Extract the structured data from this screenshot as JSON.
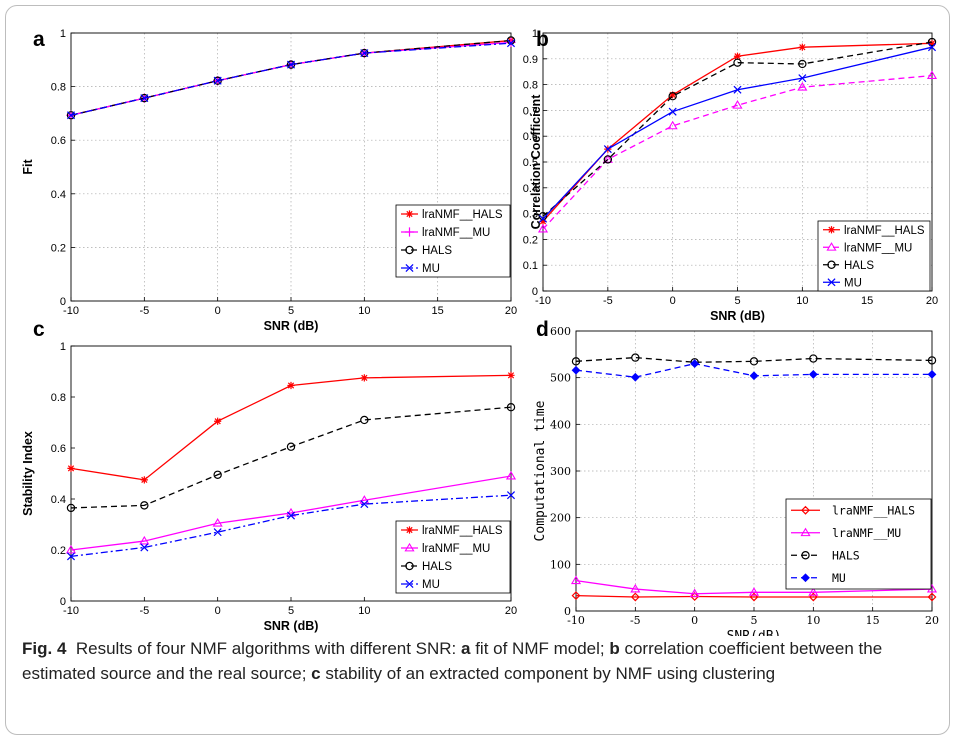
{
  "caption": {
    "label": "Fig. 4",
    "text_1": "Results of four NMF algorithms with different SNR: ",
    "a": "a",
    "text_a": " fit of NMF model; ",
    "b": "b",
    "text_b": " correlation coefficient between the estimated source and the real source; ",
    "c": "c",
    "text_c": " stability of an extracted component by NMF using clustering"
  },
  "chart_data": [
    {
      "panel": "a",
      "type": "line",
      "xlabel": "SNR (dB)",
      "ylabel": "Fit",
      "x": [
        -10,
        -5,
        0,
        5,
        10,
        20
      ],
      "xlim": [
        -10,
        20
      ],
      "ylim": [
        0,
        1
      ],
      "xticks": [
        "-10",
        "-5",
        "0",
        "5",
        "10",
        "15",
        "20"
      ],
      "yticks": [
        "0",
        "0.2",
        "0.4",
        "0.6",
        "0.8",
        "1"
      ],
      "grid": true,
      "legend_position": "bottom-right",
      "series": [
        {
          "name": "lraNMF__HALS",
          "color": "#ff0000",
          "marker": "asterisk",
          "dash": "solid",
          "values": [
            0.693,
            0.757,
            0.822,
            0.882,
            0.925,
            0.972
          ]
        },
        {
          "name": "lraNMF__MU",
          "color": "#ff00ff",
          "marker": "plus",
          "dash": "solid",
          "values": [
            0.693,
            0.757,
            0.822,
            0.882,
            0.925,
            0.965
          ]
        },
        {
          "name": "HALS",
          "color": "#000000",
          "marker": "circle",
          "dash": "dashed",
          "values": [
            0.693,
            0.757,
            0.822,
            0.882,
            0.925,
            0.972
          ]
        },
        {
          "name": "MU",
          "color": "#0000ff",
          "marker": "x",
          "dash": "dashdot",
          "values": [
            0.693,
            0.757,
            0.822,
            0.882,
            0.925,
            0.962
          ]
        }
      ]
    },
    {
      "panel": "b",
      "type": "line",
      "xlabel": "SNR (dB)",
      "ylabel": "Correlation Coefficient",
      "x": [
        -10,
        -5,
        0,
        5,
        10,
        20
      ],
      "xlim": [
        -10,
        20
      ],
      "ylim": [
        0,
        1
      ],
      "xticks": [
        "-10",
        "-5",
        "0",
        "5",
        "10",
        "15",
        "20"
      ],
      "yticks": [
        "0",
        "0.1",
        "0.2",
        "0.3",
        "0.4",
        "0.5",
        "0.6",
        "0.7",
        "0.8",
        "0.9",
        "1"
      ],
      "grid": true,
      "legend_position": "bottom-right",
      "series": [
        {
          "name": "lraNMF__HALS",
          "color": "#ff0000",
          "marker": "asterisk",
          "dash": "solid",
          "values": [
            0.27,
            0.55,
            0.76,
            0.91,
            0.945,
            0.96
          ]
        },
        {
          "name": "lraNMF__MU",
          "color": "#ff00ff",
          "marker": "triangle",
          "dash": "dashed",
          "values": [
            0.24,
            0.51,
            0.64,
            0.72,
            0.79,
            0.835
          ]
        },
        {
          "name": "HALS",
          "color": "#000000",
          "marker": "circle",
          "dash": "dashed",
          "values": [
            0.29,
            0.51,
            0.755,
            0.885,
            0.88,
            0.965
          ]
        },
        {
          "name": "MU",
          "color": "#0000ff",
          "marker": "x",
          "dash": "solid",
          "values": [
            0.28,
            0.55,
            0.695,
            0.78,
            0.825,
            0.945
          ]
        }
      ]
    },
    {
      "panel": "c",
      "type": "line",
      "xlabel": "SNR (dB)",
      "ylabel": "Stability Index",
      "x": [
        -10,
        -5,
        0,
        5,
        10,
        20
      ],
      "xlim": [
        -10,
        20
      ],
      "ylim": [
        0,
        1
      ],
      "xticks": [
        "-10",
        "-5",
        "0",
        "5",
        "10",
        "20"
      ],
      "yticks": [
        "0",
        "0.2",
        "0.4",
        "0.6",
        "0.8",
        "1"
      ],
      "grid": false,
      "legend_position": "bottom-right",
      "series": [
        {
          "name": "lraNMF__HALS",
          "color": "#ff0000",
          "marker": "asterisk",
          "dash": "solid",
          "values": [
            0.52,
            0.475,
            0.705,
            0.845,
            0.875,
            0.885
          ]
        },
        {
          "name": "lraNMF__MU",
          "color": "#ff00ff",
          "marker": "triangle",
          "dash": "solid",
          "values": [
            0.2,
            0.235,
            0.305,
            0.345,
            0.395,
            0.49
          ]
        },
        {
          "name": "HALS",
          "color": "#000000",
          "marker": "circle",
          "dash": "dashed",
          "values": [
            0.365,
            0.375,
            0.495,
            0.605,
            0.71,
            0.76
          ]
        },
        {
          "name": "MU",
          "color": "#0000ff",
          "marker": "x",
          "dash": "dashdot",
          "values": [
            0.175,
            0.21,
            0.27,
            0.335,
            0.38,
            0.415
          ]
        }
      ]
    },
    {
      "panel": "d",
      "type": "line",
      "xlabel": "SNR(dB)",
      "ylabel": "Computational time",
      "x": [
        -10,
        -5,
        0,
        5,
        10,
        20
      ],
      "xlim": [
        -10,
        20
      ],
      "ylim": [
        0,
        600
      ],
      "xticks": [
        "-10",
        "-5",
        "0",
        "5",
        "10",
        "15",
        "20"
      ],
      "yticks": [
        "0",
        "100",
        "200",
        "300",
        "400",
        "500",
        "600"
      ],
      "grid": true,
      "legend_position": "bottom-right",
      "series": [
        {
          "name": "lraNMF__HALS",
          "color": "#ff0000",
          "marker": "diamond",
          "dash": "solid",
          "values": [
            33,
            30,
            31,
            30,
            30,
            30
          ]
        },
        {
          "name": "lraNMF__MU",
          "color": "#ff00ff",
          "marker": "triangle",
          "dash": "solid",
          "values": [
            65,
            47,
            37,
            40,
            40,
            47
          ]
        },
        {
          "name": "HALS",
          "color": "#000000",
          "marker": "circle",
          "dash": "dashed",
          "values": [
            535,
            543,
            533,
            535,
            541,
            537
          ]
        },
        {
          "name": "MU",
          "color": "#0000ff",
          "marker": "diamondfill",
          "dash": "dashed",
          "values": [
            516,
            501,
            530,
            504,
            507,
            507
          ]
        }
      ]
    }
  ]
}
